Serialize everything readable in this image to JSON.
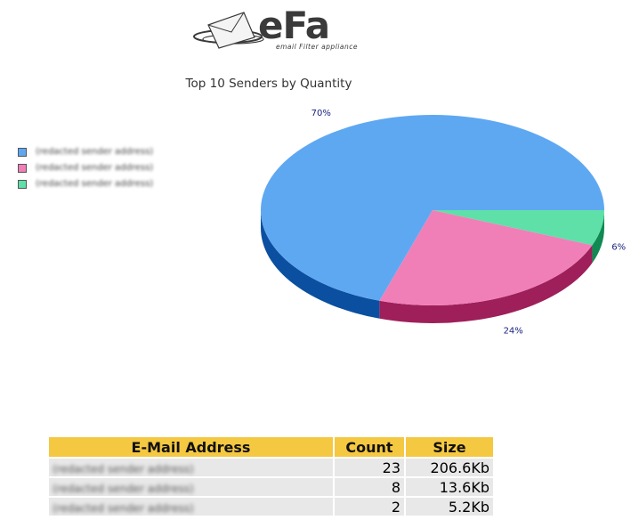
{
  "logo": {
    "word": "eFa",
    "tagline": "email Filter appliance"
  },
  "chart_data": {
    "type": "pie",
    "title": "Top 10 Senders by Quantity",
    "slices": [
      {
        "label": "(redacted sender address)",
        "value": 70,
        "display": "70%",
        "color": "#5ea8f2",
        "side_color": "#0b4fa0"
      },
      {
        "label": "(redacted sender address)",
        "value": 24,
        "display": "24%",
        "color": "#f07fb8",
        "side_color": "#9e1f5a"
      },
      {
        "label": "(redacted sender address)",
        "value": 6,
        "display": "6%",
        "color": "#5ee0a8",
        "side_color": "#108a52"
      }
    ],
    "legend_position": "left",
    "three_d": true
  },
  "table": {
    "headers": {
      "address": "E-Mail Address",
      "count": "Count",
      "size": "Size"
    },
    "rows": [
      {
        "address": "(redacted sender address)",
        "count": "23",
        "size": "206.6Kb"
      },
      {
        "address": "(redacted sender address)",
        "count": "8",
        "size": "13.6Kb"
      },
      {
        "address": "(redacted sender address)",
        "count": "2",
        "size": "5.2Kb"
      }
    ]
  },
  "colors": {
    "header_bg": "#f5c842",
    "row_bg": "#e8e8e8",
    "pct_text": "#1a237e"
  }
}
